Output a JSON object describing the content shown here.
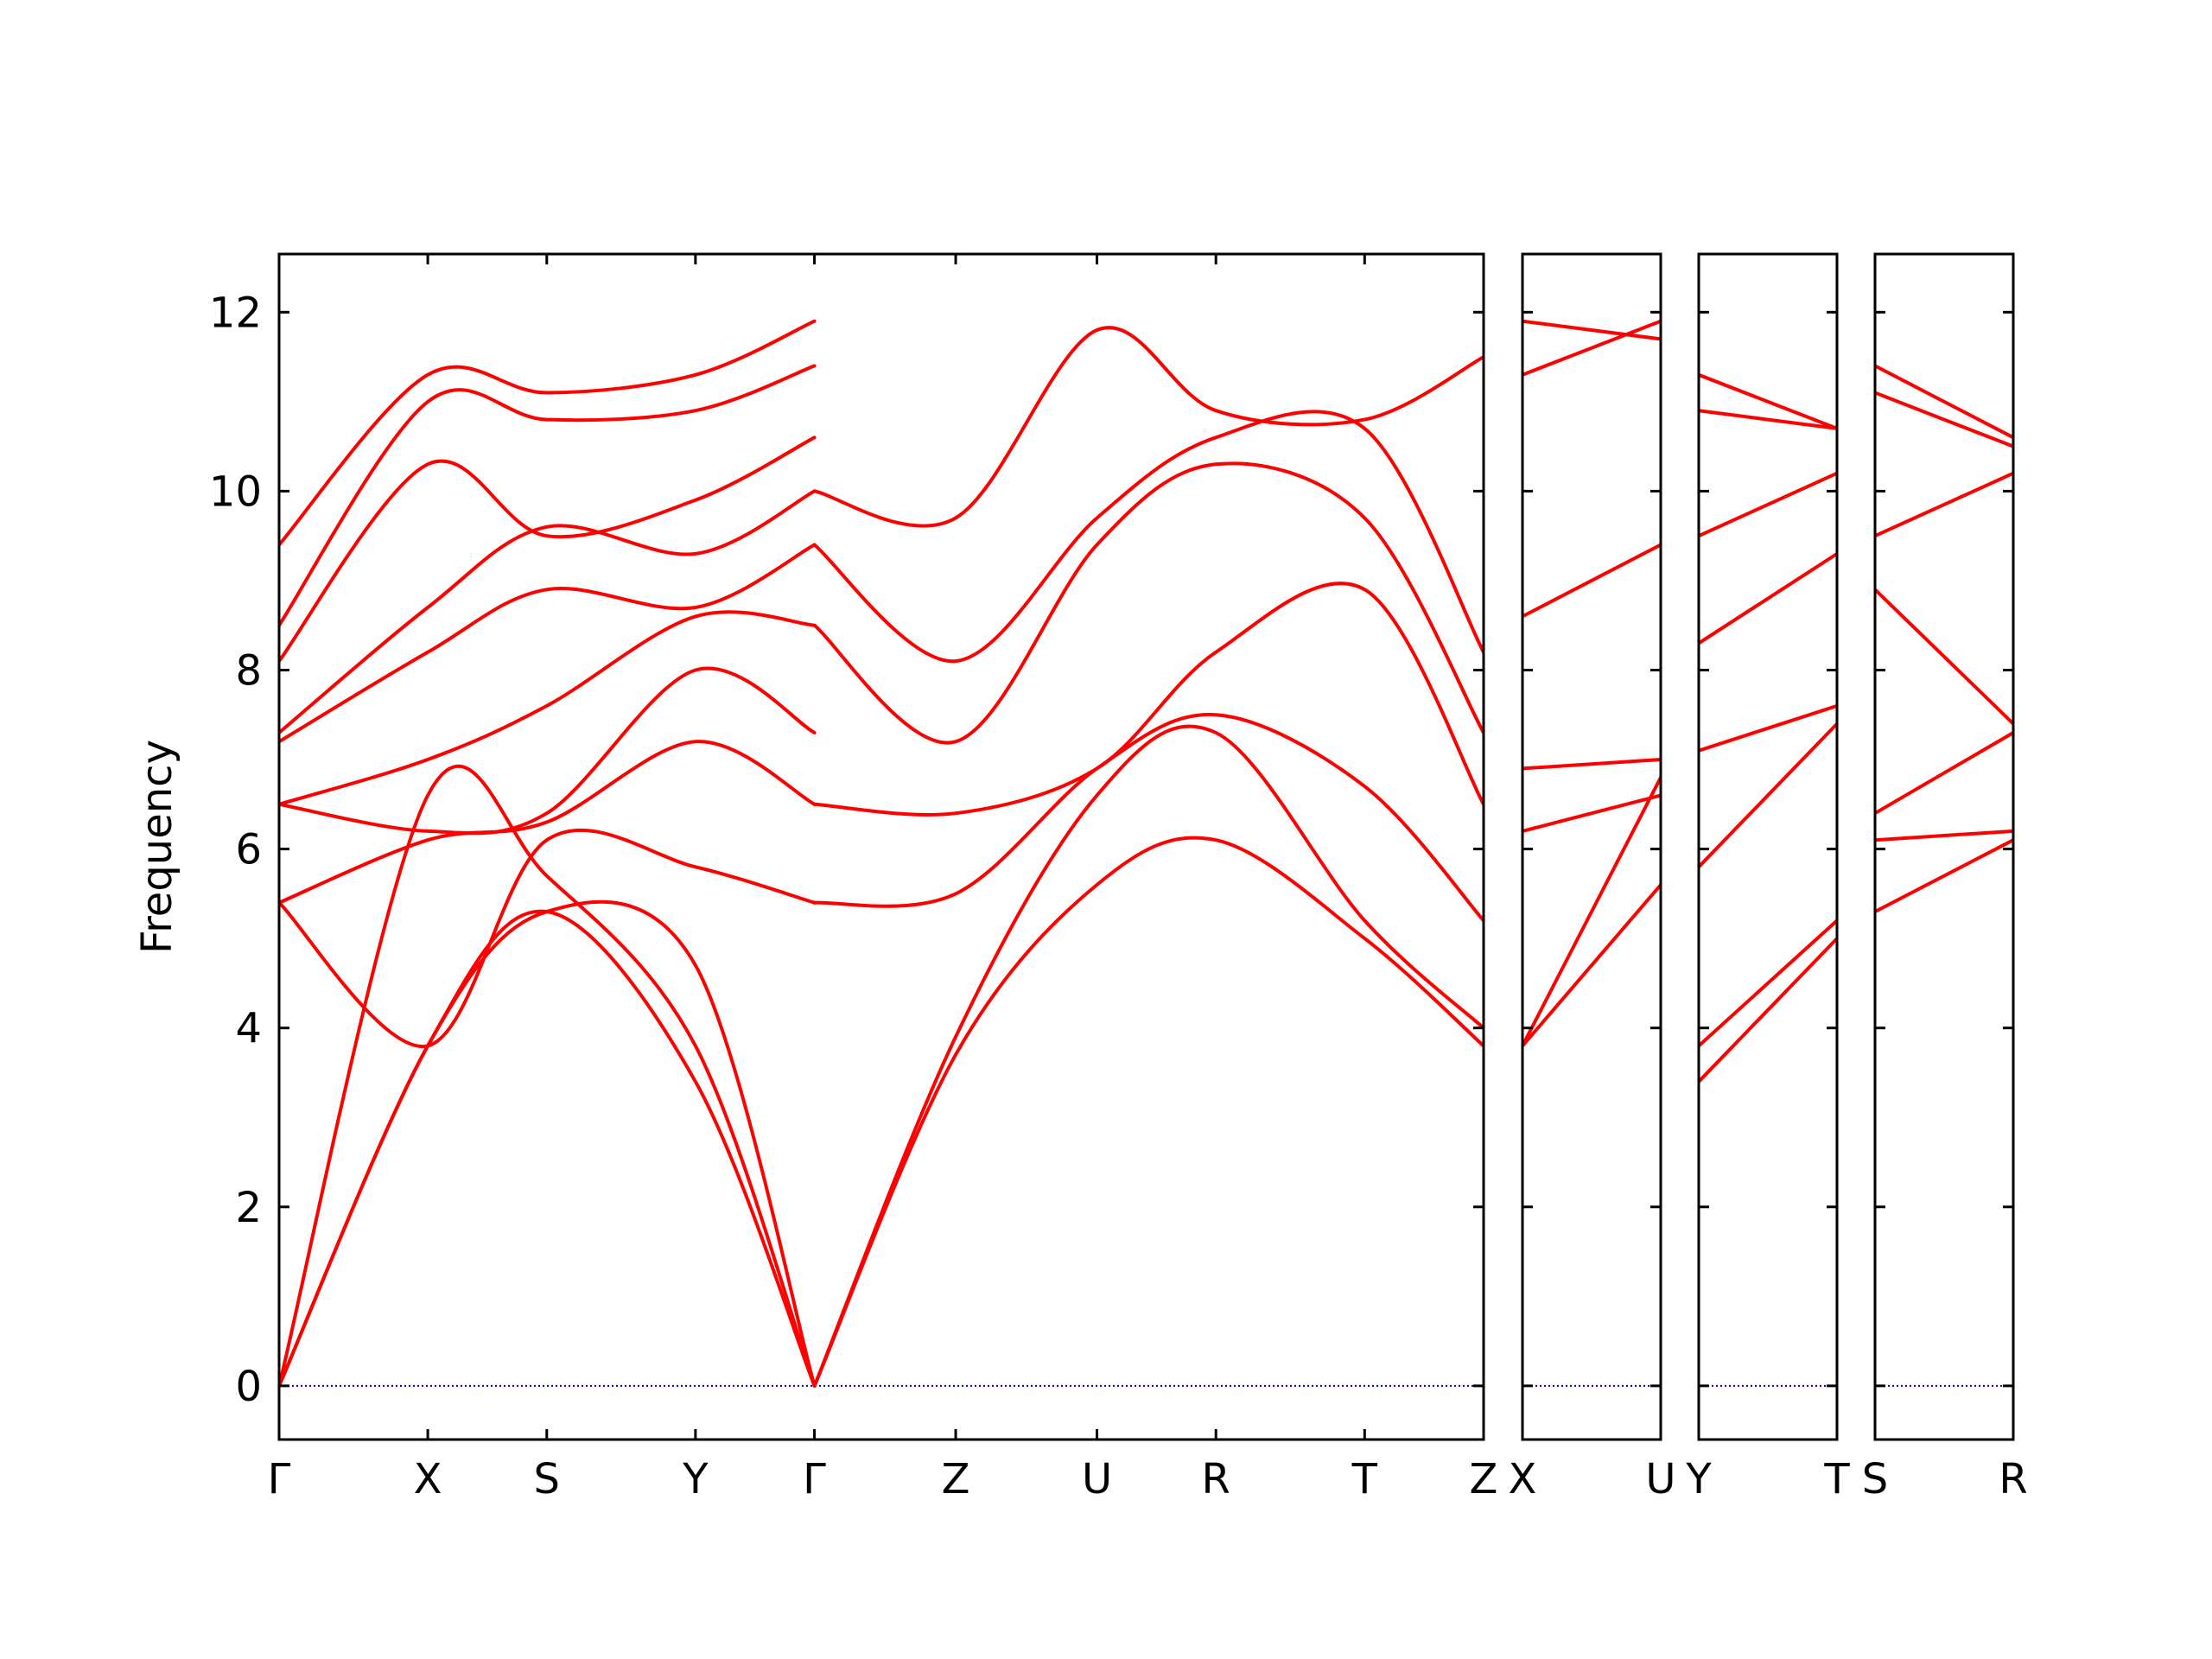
{
  "chart_data": {
    "type": "line",
    "title": "",
    "ylabel": "Frequency",
    "ylim": [
      -0.6,
      12.65
    ],
    "y_ticks": [
      0,
      2,
      4,
      6,
      8,
      10,
      12
    ],
    "grid": false,
    "line_color": "#ff0000",
    "zero_line_color": "#0000cc",
    "panels": [
      {
        "labels": [
          "Γ",
          "X",
          "S",
          "Y",
          "Γ",
          "Z",
          "U",
          "R",
          "T",
          "Z"
        ],
        "ticks": [
          0,
          1,
          1.8,
          2.8,
          3.6,
          4.55,
          5.5,
          6.3,
          7.3,
          8.1
        ],
        "xlim": [
          0,
          8.1
        ],
        "bands": [
          {
            "x": [
              0,
              1,
              1.8,
              2.8,
              3.6
            ],
            "y": [
              0.0,
              3.8,
              5.3,
              3.4,
              0.0
            ]
          },
          {
            "x": [
              0,
              1,
              1.8,
              2.8,
              3.6
            ],
            "y": [
              0.0,
              6.6,
              5.7,
              3.8,
              0.0
            ]
          },
          {
            "x": [
              0,
              1,
              1.8,
              2.8,
              3.6
            ],
            "y": [
              0.0,
              3.8,
              5.3,
              4.7,
              0.0
            ]
          },
          {
            "x": [
              0,
              1,
              1.8,
              2.8,
              3.6
            ],
            "y": [
              5.4,
              3.8,
              6.1,
              5.8,
              5.4
            ]
          },
          {
            "x": [
              0,
              1,
              1.8,
              2.8,
              3.6
            ],
            "y": [
              5.4,
              6.1,
              6.3,
              7.2,
              6.5
            ]
          },
          {
            "x": [
              0,
              1,
              1.8,
              2.8,
              3.6
            ],
            "y": [
              6.5,
              6.2,
              6.4,
              8.0,
              7.3
            ]
          },
          {
            "x": [
              0,
              1,
              1.8,
              2.8,
              3.6
            ],
            "y": [
              6.5,
              7.0,
              7.6,
              8.6,
              8.5
            ]
          },
          {
            "x": [
              0,
              1,
              1.8,
              2.8,
              3.6
            ],
            "y": [
              7.2,
              8.2,
              8.9,
              8.7,
              9.4
            ]
          },
          {
            "x": [
              0,
              1,
              1.8,
              2.8,
              3.6
            ],
            "y": [
              7.3,
              8.7,
              9.6,
              9.3,
              10.0
            ]
          },
          {
            "x": [
              0,
              1,
              1.8,
              2.8,
              3.6
            ],
            "y": [
              8.1,
              10.3,
              9.5,
              9.9,
              10.6
            ]
          },
          {
            "x": [
              0,
              1,
              1.8,
              2.8,
              3.6
            ],
            "y": [
              8.5,
              11.0,
              10.8,
              10.9,
              11.4
            ]
          },
          {
            "x": [
              0,
              1,
              1.8,
              2.8,
              3.6
            ],
            "y": [
              9.4,
              11.3,
              11.1,
              11.3,
              11.9
            ]
          },
          {
            "x": [
              3.6,
              4.55,
              5.5,
              6.3,
              7.3,
              8.1
            ],
            "y": [
              0.0,
              3.7,
              5.6,
              6.1,
              5.0,
              3.8
            ]
          },
          {
            "x": [
              3.6,
              4.55,
              5.5,
              6.3,
              7.3,
              8.1
            ],
            "y": [
              0.0,
              3.9,
              6.6,
              7.3,
              5.2,
              4.0
            ]
          },
          {
            "x": [
              3.6,
              4.55,
              5.5,
              6.3,
              7.3,
              8.1
            ],
            "y": [
              5.4,
              5.5,
              6.9,
              7.5,
              6.7,
              5.2
            ]
          },
          {
            "x": [
              3.6,
              4.55,
              5.5,
              6.3,
              7.3,
              8.1
            ],
            "y": [
              6.5,
              6.4,
              6.9,
              8.2,
              8.9,
              6.5
            ]
          },
          {
            "x": [
              3.6,
              4.55,
              5.5,
              6.3,
              7.3,
              8.1
            ],
            "y": [
              8.5,
              7.2,
              9.4,
              10.3,
              9.7,
              7.3
            ]
          },
          {
            "x": [
              3.6,
              4.55,
              5.5,
              6.3,
              7.3,
              8.1
            ],
            "y": [
              9.4,
              8.1,
              9.7,
              10.6,
              10.7,
              8.2
            ]
          },
          {
            "x": [
              3.6,
              4.55,
              5.5,
              6.3,
              7.3,
              8.1
            ],
            "y": [
              10.0,
              9.7,
              11.8,
              10.9,
              10.8,
              11.5
            ]
          }
        ]
      },
      {
        "labels": [
          "X",
          "U"
        ],
        "ticks": [
          0,
          1
        ],
        "xlim": [
          0,
          1
        ],
        "bands": [
          {
            "x": [
              0,
              1
            ],
            "y": [
              3.8,
              5.6
            ]
          },
          {
            "x": [
              0,
              1
            ],
            "y": [
              3.8,
              6.8
            ]
          },
          {
            "x": [
              0,
              1
            ],
            "y": [
              6.2,
              6.6
            ]
          },
          {
            "x": [
              0,
              1
            ],
            "y": [
              6.9,
              7.0
            ]
          },
          {
            "x": [
              0,
              1
            ],
            "y": [
              8.6,
              9.4
            ]
          },
          {
            "x": [
              0,
              1
            ],
            "y": [
              11.3,
              11.9
            ]
          },
          {
            "x": [
              0,
              1
            ],
            "y": [
              11.9,
              11.7
            ]
          }
        ]
      },
      {
        "labels": [
          "Y",
          "T"
        ],
        "ticks": [
          0,
          1
        ],
        "xlim": [
          0,
          1
        ],
        "bands": [
          {
            "x": [
              0,
              1
            ],
            "y": [
              3.4,
              5.0
            ]
          },
          {
            "x": [
              0,
              1
            ],
            "y": [
              3.8,
              5.2
            ]
          },
          {
            "x": [
              0,
              1
            ],
            "y": [
              5.8,
              7.4
            ]
          },
          {
            "x": [
              0,
              1
            ],
            "y": [
              7.1,
              7.6
            ]
          },
          {
            "x": [
              0,
              1
            ],
            "y": [
              8.3,
              9.3
            ]
          },
          {
            "x": [
              0,
              1
            ],
            "y": [
              9.5,
              10.2
            ]
          },
          {
            "x": [
              0,
              1
            ],
            "y": [
              10.9,
              10.7
            ]
          },
          {
            "x": [
              0,
              1
            ],
            "y": [
              11.3,
              10.7
            ]
          }
        ]
      },
      {
        "labels": [
          "S",
          "R"
        ],
        "ticks": [
          0,
          1
        ],
        "xlim": [
          0,
          1
        ],
        "bands": [
          {
            "x": [
              0,
              1
            ],
            "y": [
              5.3,
              6.1
            ]
          },
          {
            "x": [
              0,
              1
            ],
            "y": [
              6.1,
              6.2
            ]
          },
          {
            "x": [
              0,
              1
            ],
            "y": [
              6.4,
              7.3
            ]
          },
          {
            "x": [
              0,
              1
            ],
            "y": [
              8.9,
              7.4
            ]
          },
          {
            "x": [
              0,
              1
            ],
            "y": [
              9.5,
              10.2
            ]
          },
          {
            "x": [
              0,
              1
            ],
            "y": [
              11.1,
              10.5
            ]
          },
          {
            "x": [
              0,
              1
            ],
            "y": [
              11.4,
              10.6
            ]
          }
        ]
      }
    ]
  }
}
